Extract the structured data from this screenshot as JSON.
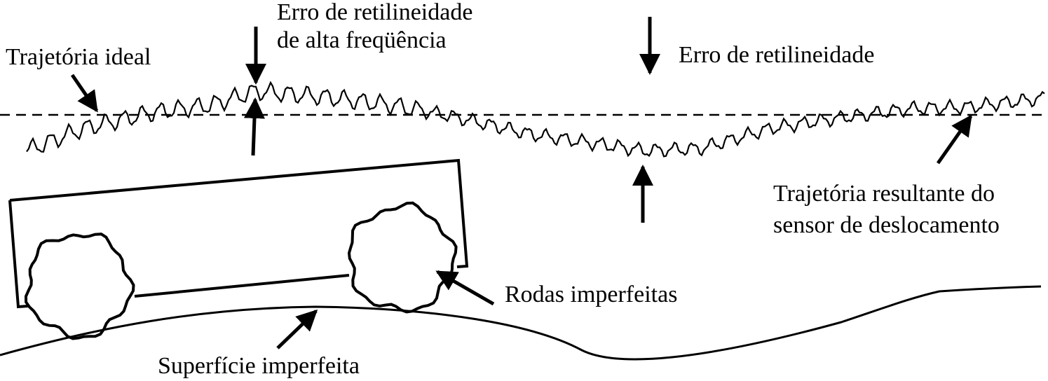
{
  "labels": {
    "ideal_path": "Trajetória ideal",
    "hf_error_line1": "Erro de retilineidade",
    "hf_error_line2": "de alta freqüência",
    "straightness_error": "Erro de retilineidade",
    "result_line1": "Trajetória resultante do",
    "result_line2": "sensor de deslocamento",
    "wheels": "Rodas imperfeitas",
    "surface": "Superfície imperfeita"
  },
  "colors": {
    "ink": "#000000",
    "background": "#ffffff"
  }
}
